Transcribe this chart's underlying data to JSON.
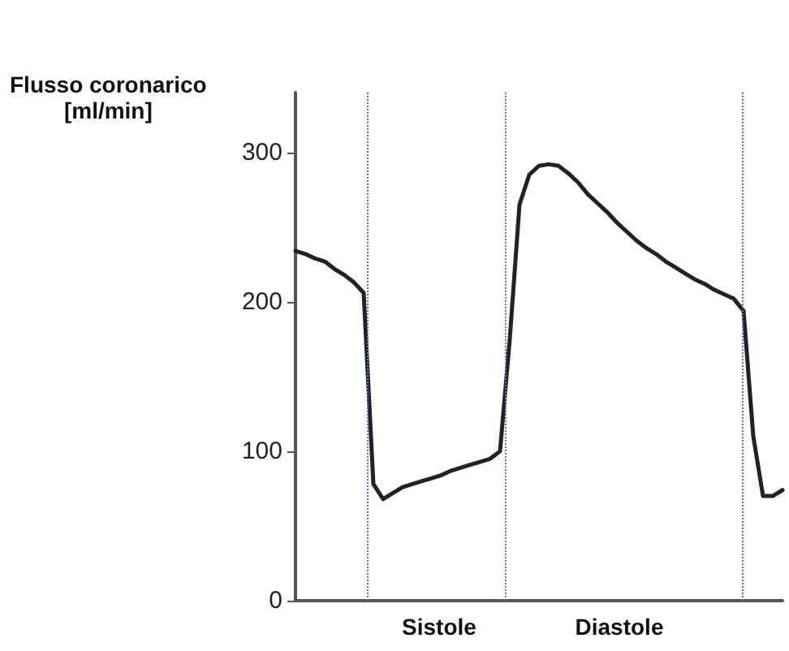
{
  "chart_data": {
    "type": "line",
    "ylabel": "Flusso coronarico\n[ml/min]",
    "categories": [
      null,
      null,
      null,
      null,
      null,
      null,
      null,
      null,
      null,
      null,
      null,
      null,
      null,
      null,
      null,
      null,
      null,
      null,
      null,
      null,
      null,
      null,
      null,
      null,
      null,
      null,
      null,
      null,
      null,
      null,
      null,
      null,
      null,
      null,
      null,
      null,
      null,
      null,
      null,
      null,
      null,
      null,
      null,
      null,
      null,
      null,
      null,
      null,
      null,
      null,
      null
    ],
    "series": [
      {
        "color": "#222222",
        "values": [
          234,
          232,
          229,
          227,
          222,
          218,
          213,
          206,
          78,
          68,
          72,
          76,
          78,
          80,
          82,
          84,
          87,
          89,
          91,
          93,
          95,
          100,
          175,
          265,
          285,
          291,
          292,
          291,
          286,
          280,
          272,
          266,
          260,
          253,
          247,
          241,
          236,
          232,
          227,
          223,
          219,
          215,
          212,
          208,
          205,
          202,
          194,
          110,
          70,
          70,
          74
        ]
      }
    ],
    "ylim": [
      0,
      340
    ],
    "yticks": [
      0,
      100,
      200,
      300
    ],
    "tick_labels": "y",
    "line_style": "solid",
    "annotations": [
      "Sistole",
      "Diastole"
    ]
  }
}
